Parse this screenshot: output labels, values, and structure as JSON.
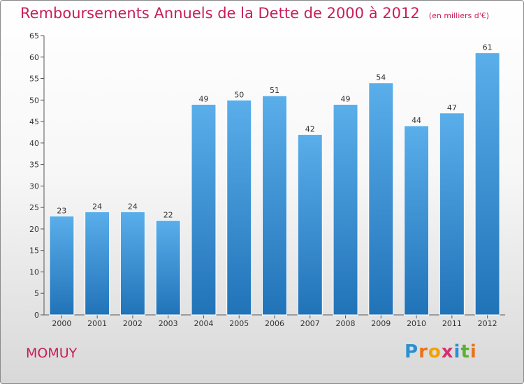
{
  "chart_data": {
    "type": "bar",
    "title": "Remboursements Annuels de la Dette de 2000 à 2012",
    "subtitle": "(en milliers d'€)",
    "categories": [
      "2000",
      "2001",
      "2002",
      "2003",
      "2004",
      "2005",
      "2006",
      "2007",
      "2008",
      "2009",
      "2010",
      "2011",
      "2012"
    ],
    "values": [
      23,
      24,
      24,
      22,
      49,
      50,
      51,
      42,
      49,
      54,
      44,
      47,
      61
    ],
    "ylim": [
      0,
      65
    ],
    "yticks": [
      0,
      5,
      10,
      15,
      20,
      25,
      30,
      35,
      40,
      45,
      50,
      55,
      60,
      65
    ],
    "grid": false,
    "bar_color": "#3a8fd6"
  },
  "footer": {
    "town": "MOMUY",
    "logo_letters": [
      "P",
      "r",
      "o",
      "x",
      "i",
      "t",
      "i"
    ],
    "logo_colors": [
      "#2a8fd0",
      "#e8741a",
      "#f0a300",
      "#d6306e",
      "#2a8fd0",
      "#5ab031",
      "#e8741a"
    ]
  }
}
